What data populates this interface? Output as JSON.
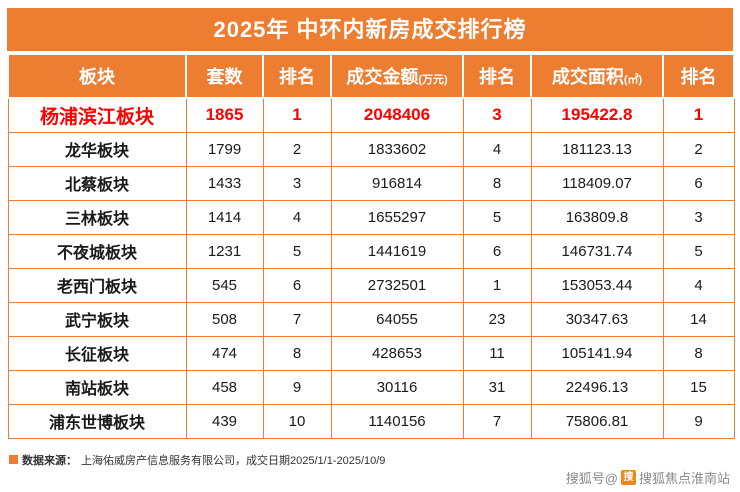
{
  "colors": {
    "accent": "#ED7D31",
    "highlight": "#FF0000"
  },
  "chart_data": {
    "type": "table",
    "title": "2025年 中环内新房成交排行榜",
    "columns": [
      {
        "label": "板块",
        "sub": ""
      },
      {
        "label": "套数",
        "sub": ""
      },
      {
        "label": "排名",
        "sub": ""
      },
      {
        "label": "成交金额",
        "sub": "(万元)"
      },
      {
        "label": "排名",
        "sub": ""
      },
      {
        "label": "成交面积",
        "sub": "(㎡)"
      },
      {
        "label": "排名",
        "sub": ""
      }
    ],
    "rows": [
      {
        "block": "杨浦滨江板块",
        "units": "1865",
        "units_rank": "1",
        "amount": "2048406",
        "amount_rank": "3",
        "area": "195422.8",
        "area_rank": "1",
        "highlight": true
      },
      {
        "block": "龙华板块",
        "units": "1799",
        "units_rank": "2",
        "amount": "1833602",
        "amount_rank": "4",
        "area": "181123.13",
        "area_rank": "2",
        "highlight": false
      },
      {
        "block": "北蔡板块",
        "units": "1433",
        "units_rank": "3",
        "amount": "916814",
        "amount_rank": "8",
        "area": "118409.07",
        "area_rank": "6",
        "highlight": false
      },
      {
        "block": "三林板块",
        "units": "1414",
        "units_rank": "4",
        "amount": "1655297",
        "amount_rank": "5",
        "area": "163809.8",
        "area_rank": "3",
        "highlight": false
      },
      {
        "block": "不夜城板块",
        "units": "1231",
        "units_rank": "5",
        "amount": "1441619",
        "amount_rank": "6",
        "area": "146731.74",
        "area_rank": "5",
        "highlight": false
      },
      {
        "block": "老西门板块",
        "units": "545",
        "units_rank": "6",
        "amount": "2732501",
        "amount_rank": "1",
        "area": "153053.44",
        "area_rank": "4",
        "highlight": false
      },
      {
        "block": "武宁板块",
        "units": "508",
        "units_rank": "7",
        "amount": "64055",
        "amount_rank": "23",
        "area": "30347.63",
        "area_rank": "14",
        "highlight": false
      },
      {
        "block": "长征板块",
        "units": "474",
        "units_rank": "8",
        "amount": "428653",
        "amount_rank": "11",
        "area": "105141.94",
        "area_rank": "8",
        "highlight": false
      },
      {
        "block": "南站板块",
        "units": "458",
        "units_rank": "9",
        "amount": "30116",
        "amount_rank": "31",
        "area": "22496.13",
        "area_rank": "15",
        "highlight": false
      },
      {
        "block": "浦东世博板块",
        "units": "439",
        "units_rank": "10",
        "amount": "1140156",
        "amount_rank": "7",
        "area": "75806.81",
        "area_rank": "9",
        "highlight": false
      }
    ]
  },
  "footer": {
    "label": "数据来源：",
    "text": "上海佑威房产信息服务有限公司，成交日期2025/1/1-2025/10/9"
  },
  "watermark": {
    "prefix": "搜狐号@",
    "logo_glyph": "搜",
    "suffix": "搜狐焦点淮南站"
  }
}
